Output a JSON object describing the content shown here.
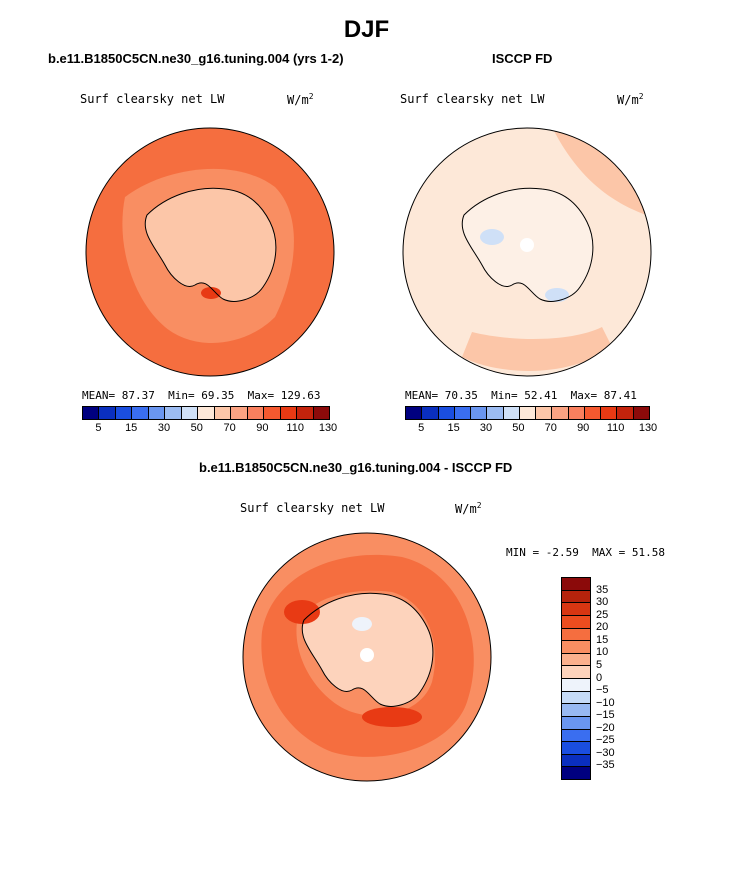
{
  "figure": {
    "season": "DJF",
    "panel_a": {
      "case": "b.e11.B1850C5CN.ne30_g16.tuning.004 (yrs 1-2)",
      "field": "Surf clearsky net LW",
      "unit_base": "W/m",
      "unit_exp": "2",
      "stats": {
        "mean_label": "MEAN=",
        "mean": "87.37",
        "min_label": "Min=",
        "min": "69.35",
        "max_label": "Max=",
        "max": "129.63"
      }
    },
    "panel_b": {
      "case": "ISCCP FD",
      "field": "Surf clearsky net LW",
      "unit_base": "W/m",
      "unit_exp": "2",
      "stats": {
        "mean_label": "MEAN=",
        "mean": "70.35",
        "min_label": "Min=",
        "min": "52.41",
        "max_label": "Max=",
        "max": "87.41"
      }
    },
    "panel_c": {
      "case": "b.e11.B1850C5CN.ne30_g16.tuning.004 - ISCCP FD",
      "field": "Surf clearsky net LW",
      "unit_base": "W/m",
      "unit_exp": "2",
      "stats": {
        "min_label": "MIN =",
        "min": "-2.59",
        "max_label": "MAX =",
        "max": "51.58"
      }
    }
  },
  "colorbar_abs": {
    "colors": [
      "#000080",
      "#0a2fbf",
      "#1a4ee0",
      "#3a6ef0",
      "#6a96f0",
      "#9cbcf2",
      "#cfe0f7",
      "#fde8d8",
      "#fcc6a8",
      "#fba383",
      "#f9805e",
      "#f5592f",
      "#e83a14",
      "#c4230c",
      "#8b0a0a"
    ],
    "ticks": [
      "5",
      "15",
      "30",
      "50",
      "70",
      "90",
      "110",
      "130"
    ]
  },
  "colorbar_diff": {
    "colors_top_to_bottom": [
      "#8b0a0a",
      "#b5230c",
      "#d83612",
      "#ec4d1f",
      "#f56e3f",
      "#f98e62",
      "#fbb08d",
      "#fdd3bc",
      "#eef3fb",
      "#c6dbf7",
      "#98b9f2",
      "#6a96f0",
      "#3a6ef0",
      "#1a4ee0",
      "#0a2fbf",
      "#000080"
    ],
    "ticks": [
      "35",
      "30",
      "25",
      "20",
      "15",
      "10",
      "5",
      "0",
      "−5",
      "−10",
      "−15",
      "−20",
      "−25",
      "−30",
      "−35"
    ]
  },
  "map_colors": {
    "a_ocean": "#f56e3f",
    "a_coast": "#f98e62",
    "a_land": "#fcc6a8",
    "a_hot": "#e83a14",
    "b_ocean": "#fde8d8",
    "b_mid": "#fcc6a8",
    "b_land": "#fdf0e6",
    "b_cold": "#cfe0f7",
    "c_ocean": "#f98e62",
    "c_band": "#f56e3f",
    "c_hot": "#e83a14",
    "c_land": "#fdd3bc",
    "c_pale": "#eef3fb"
  }
}
